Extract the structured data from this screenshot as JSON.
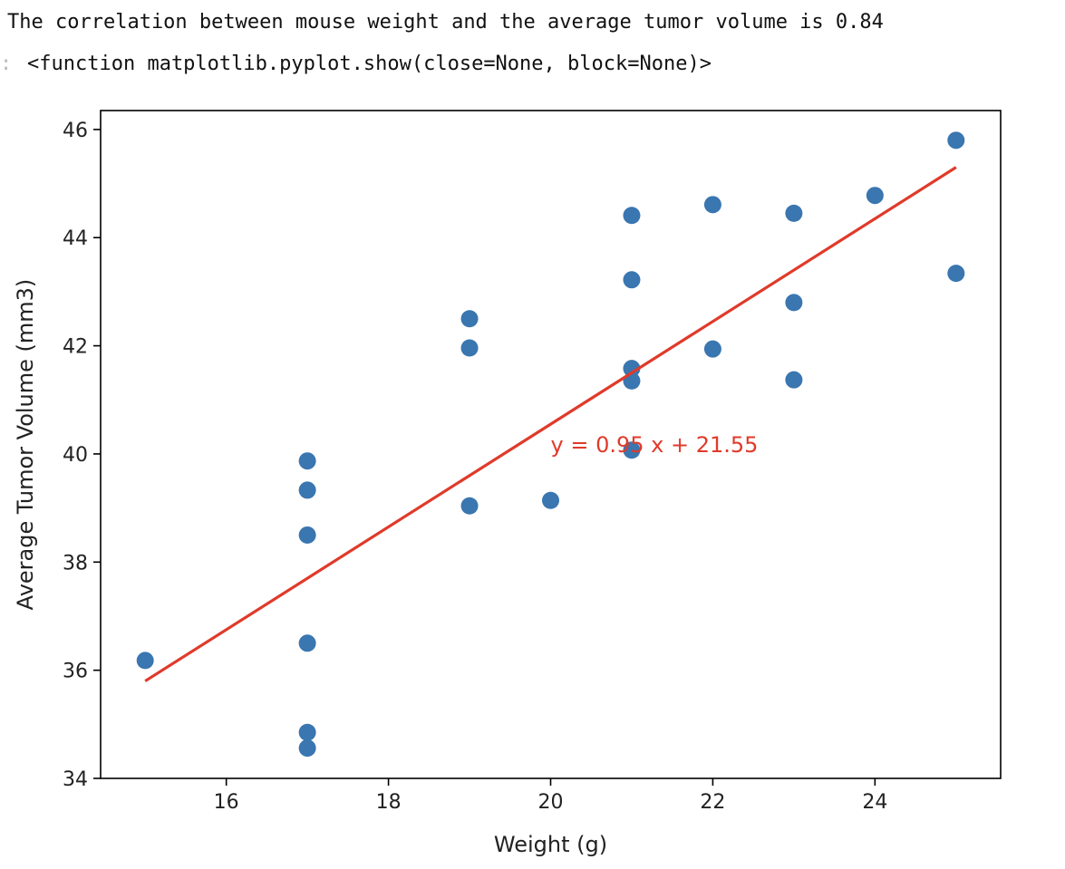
{
  "notebook": {
    "stdout_line": "The correlation between mouse weight and the average tumor volume is 0.84",
    "out_prompt": ":",
    "out_repr": "<function matplotlib.pyplot.show(close=None, block=None)>"
  },
  "chart_data": {
    "type": "scatter",
    "title": "",
    "xlabel": "Weight (g)",
    "ylabel": "Average Tumor Volume (mm3)",
    "xlim": [
      14.45,
      25.55
    ],
    "ylim": [
      34,
      46.35
    ],
    "xticks": [
      16,
      18,
      20,
      22,
      24
    ],
    "yticks": [
      34,
      36,
      38,
      40,
      42,
      44,
      46
    ],
    "grid": false,
    "points": [
      {
        "x": 15,
        "y": 36.18
      },
      {
        "x": 17,
        "y": 39.87
      },
      {
        "x": 17,
        "y": 39.33
      },
      {
        "x": 17,
        "y": 38.5
      },
      {
        "x": 17,
        "y": 36.5
      },
      {
        "x": 17,
        "y": 34.85
      },
      {
        "x": 17,
        "y": 34.56
      },
      {
        "x": 19,
        "y": 42.5
      },
      {
        "x": 19,
        "y": 41.96
      },
      {
        "x": 19,
        "y": 39.04
      },
      {
        "x": 20,
        "y": 39.14
      },
      {
        "x": 21,
        "y": 44.41
      },
      {
        "x": 21,
        "y": 43.22
      },
      {
        "x": 21,
        "y": 41.58
      },
      {
        "x": 21,
        "y": 41.35
      },
      {
        "x": 21,
        "y": 40.07
      },
      {
        "x": 22,
        "y": 44.61
      },
      {
        "x": 22,
        "y": 41.94
      },
      {
        "x": 23,
        "y": 44.45
      },
      {
        "x": 23,
        "y": 42.8
      },
      {
        "x": 23,
        "y": 41.37
      },
      {
        "x": 24,
        "y": 44.78
      },
      {
        "x": 25,
        "y": 45.8
      },
      {
        "x": 25,
        "y": 43.34
      }
    ],
    "regression": {
      "slope": 0.95,
      "intercept": 21.55,
      "x_range": [
        15,
        25
      ],
      "label": "y = 0.95 x + 21.55",
      "label_x": 20,
      "label_y": 40
    },
    "colors": {
      "points": "#3a76b0",
      "line": "#e03a2a",
      "annotation": "#e03a2a",
      "axes": "#000000"
    }
  }
}
